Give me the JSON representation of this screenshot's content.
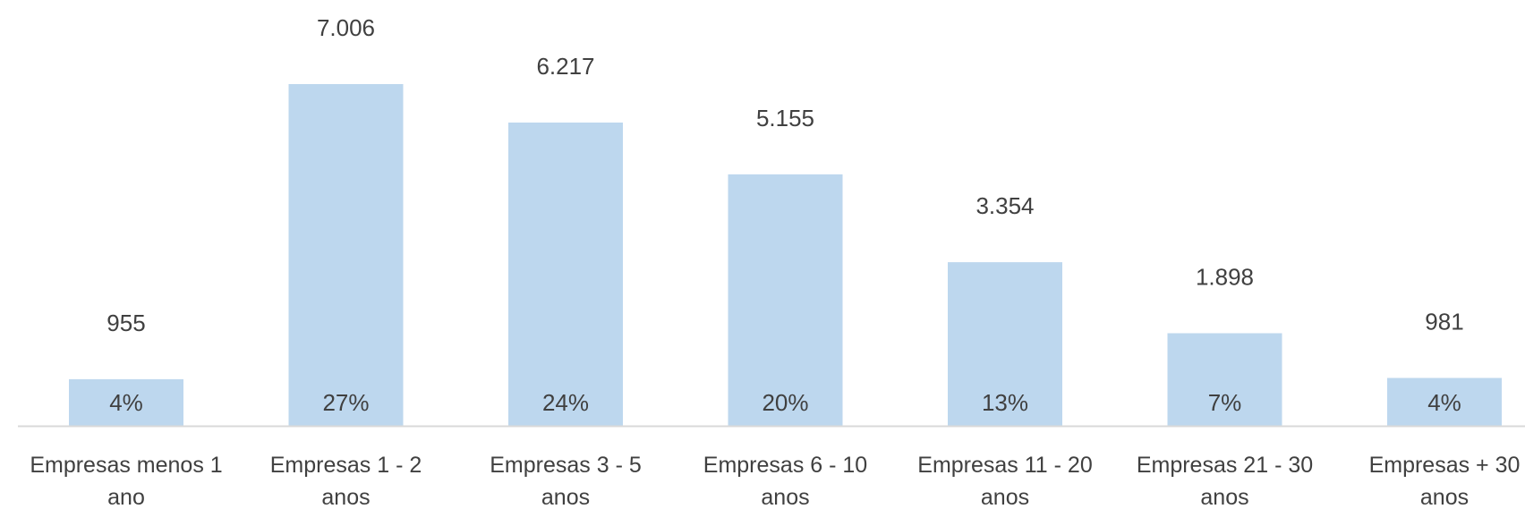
{
  "chart_data": {
    "type": "bar",
    "categories": [
      "Empresas menos 1 ano",
      "Empresas 1 - 2 anos",
      "Empresas 3 - 5 anos",
      "Empresas 6 - 10 anos",
      "Empresas 11 - 20 anos",
      "Empresas 21 - 30 anos",
      "Empresas + 30 anos"
    ],
    "category_lines": [
      [
        "Empresas menos 1",
        "ano"
      ],
      [
        "Empresas 1 - 2",
        "anos"
      ],
      [
        "Empresas 3 - 5",
        "anos"
      ],
      [
        "Empresas 6 - 10",
        "anos"
      ],
      [
        "Empresas 11 - 20",
        "anos"
      ],
      [
        "Empresas 21 - 30",
        "anos"
      ],
      [
        "Empresas + 30",
        "anos"
      ]
    ],
    "values": [
      955,
      7006,
      6217,
      5155,
      3354,
      1898,
      981
    ],
    "value_labels": [
      "955",
      "7.006",
      "6.217",
      "5.155",
      "3.354",
      "1.898",
      "981"
    ],
    "percent_labels": [
      "4%",
      "27%",
      "24%",
      "20%",
      "13%",
      "7%",
      "4%"
    ],
    "title": "",
    "xlabel": "",
    "ylabel": "",
    "ylim": [
      0,
      7006
    ],
    "grid": false,
    "bar_color": "#bdd7ee",
    "axis_color": "#d9d9d9",
    "text_color": "#404040"
  }
}
